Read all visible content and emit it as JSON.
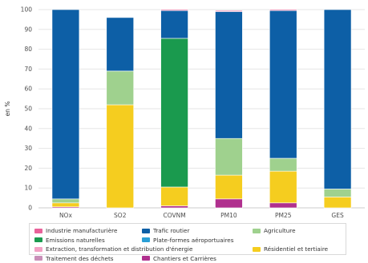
{
  "chart_data": {
    "type": "bar",
    "stacked": true,
    "ylabel": "en %",
    "ylim": [
      0,
      100
    ],
    "yticks": [
      0,
      10,
      20,
      30,
      40,
      50,
      60,
      70,
      80,
      90,
      100
    ],
    "grid": true,
    "legend_position": "bottom",
    "categories": [
      "NOx",
      "SO2",
      "COVNM",
      "PM10",
      "PM25",
      "GES"
    ],
    "series": [
      {
        "name": "Chantiers et Carrières",
        "color": "#b0308e",
        "values": [
          0.5,
          0,
          1,
          4.5,
          2.5,
          0
        ]
      },
      {
        "name": "Résidentiel et tertiaire",
        "color": "#f5cd1f",
        "values": [
          2,
          52,
          9.5,
          12,
          16,
          5.5
        ]
      },
      {
        "name": "Agriculture",
        "color": "#9fd18e",
        "values": [
          2,
          17,
          0,
          18.5,
          6.5,
          4
        ]
      },
      {
        "name": "Emissions naturelles",
        "color": "#1a9a4e",
        "values": [
          0,
          0,
          75,
          0,
          0,
          0
        ]
      },
      {
        "name": "Trafic routier",
        "color": "#0d5fa6",
        "values": [
          95.5,
          27,
          14,
          64,
          74.5,
          90.5
        ]
      },
      {
        "name": "Industrie manufacturière",
        "color": "#e8629a",
        "values": [
          0,
          0,
          0.5,
          0.5,
          0.5,
          0
        ]
      },
      {
        "name": "Plate-formes aéroportuaires",
        "color": "#2a9fd6",
        "values": [
          0,
          0,
          0,
          0,
          0,
          0
        ]
      },
      {
        "name": "Extraction, transformation et distribution d'énergie",
        "color": "#f2a0c4",
        "values": [
          0,
          0,
          0,
          0,
          0,
          0
        ]
      },
      {
        "name": "Traitement des déchets",
        "color": "#c98fb8",
        "values": [
          0,
          0,
          0,
          0,
          0,
          0
        ]
      }
    ]
  },
  "legend": [
    {
      "label": "Industrie manufacturière",
      "color": "#e8629a"
    },
    {
      "label": "Trafic routier",
      "color": "#0d5fa6"
    },
    {
      "label": "Agriculture",
      "color": "#9fd18e"
    },
    {
      "label": "Emissions naturelles",
      "color": "#1a9a4e"
    },
    {
      "label": "Plate-formes aéroportuaires",
      "color": "#2a9fd6"
    },
    {
      "label": "Extraction, transformation et distribution d'énergie",
      "color": "#f2a0c4",
      "wide": true
    },
    {
      "label": "Résidentiel et tertiaire",
      "color": "#f5cd1f"
    },
    {
      "label": "Traitement des déchets",
      "color": "#c98fb8"
    },
    {
      "label": "Chantiers et Carrières",
      "color": "#b0308e"
    }
  ]
}
